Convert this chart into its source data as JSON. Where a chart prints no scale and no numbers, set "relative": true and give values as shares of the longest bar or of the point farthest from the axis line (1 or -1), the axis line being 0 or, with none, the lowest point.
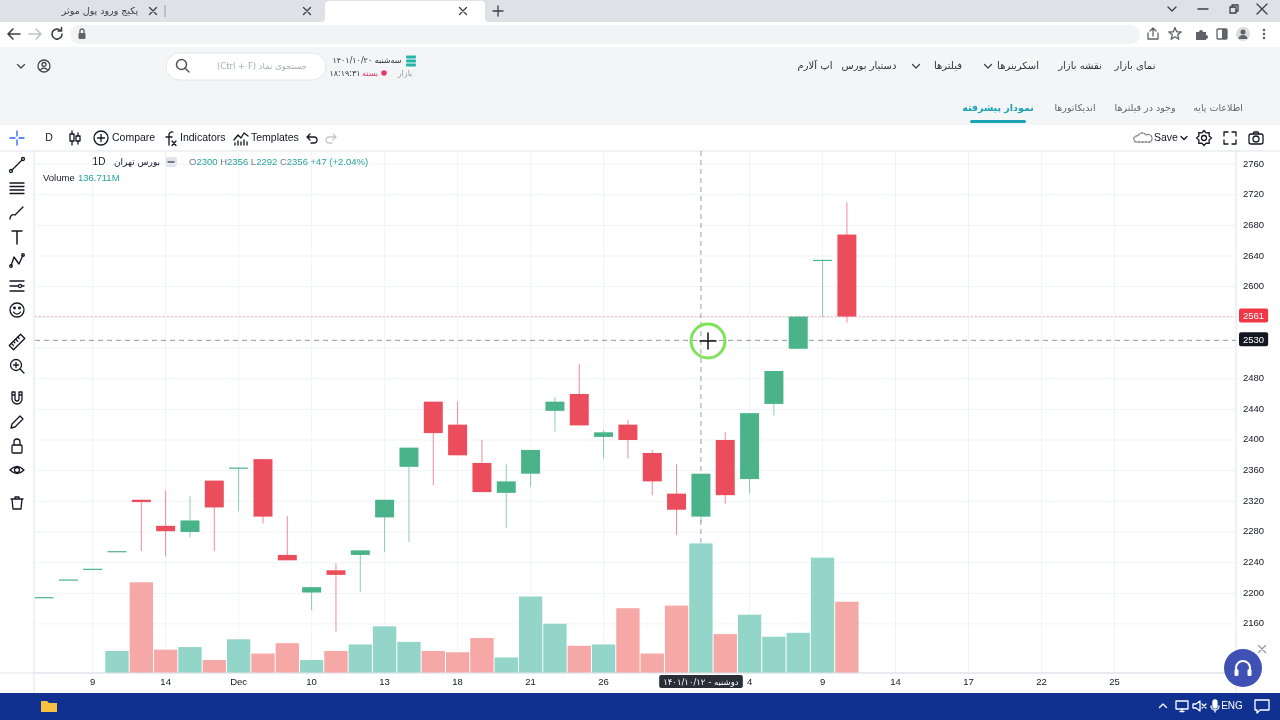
{
  "chart_data": [
    {
      "type": "candlestick",
      "categories": [
        null,
        null,
        "9",
        null,
        null,
        "14",
        null,
        null,
        "Dec",
        null,
        null,
        "10",
        null,
        null,
        "13",
        null,
        null,
        "18",
        null,
        null,
        "21",
        null,
        null,
        "26",
        null,
        null,
        null,
        "دوشنبه - ۱۴۰۱/۱۰/۱۲",
        null,
        "4",
        null,
        null,
        "9",
        null,
        null,
        "14",
        null,
        null,
        "17",
        null,
        null,
        "22",
        null,
        null,
        "25",
        null,
        null,
        null,
        null
      ],
      "ohlc": [
        [
          2195,
          2195,
          2195,
          2195
        ],
        [
          2218,
          2218,
          2218,
          2218
        ],
        [
          2232,
          2232,
          2232,
          2232
        ],
        [
          2255,
          2255,
          2255,
          2255
        ],
        [
          2322,
          2322,
          2255,
          2319
        ],
        [
          2288,
          2334,
          2248,
          2281
        ],
        [
          2280,
          2327,
          2273,
          2295
        ],
        [
          2347,
          2347,
          2255,
          2312
        ],
        [
          2364,
          2364,
          2307,
          2364
        ],
        [
          2375,
          2375,
          2291,
          2300
        ],
        [
          2250,
          2301,
          2243,
          2243
        ],
        [
          2201,
          2208,
          2178,
          2208
        ],
        [
          2230,
          2239,
          2150,
          2224
        ],
        [
          2250,
          2256,
          2202,
          2256
        ],
        [
          2299,
          2322,
          2254,
          2322
        ],
        [
          2365,
          2390,
          2267,
          2390
        ],
        [
          2450,
          2450,
          2341,
          2409
        ],
        [
          2420,
          2450,
          2380,
          2380
        ],
        [
          2370,
          2400,
          2332,
          2332
        ],
        [
          2331,
          2369,
          2285,
          2346
        ],
        [
          2356,
          2387,
          2339,
          2387
        ],
        [
          2438,
          2456,
          2411,
          2450
        ],
        [
          2460,
          2499,
          2419,
          2419
        ],
        [
          2404,
          2413,
          2376,
          2410
        ],
        [
          2420,
          2426,
          2376,
          2400
        ],
        [
          2383,
          2387,
          2328,
          2346
        ],
        [
          2330,
          2369,
          2276,
          2309
        ],
        [
          2300,
          2356,
          2292,
          2356
        ],
        [
          2400,
          2410,
          2317,
          2328
        ],
        [
          2349,
          2435,
          2330,
          2435
        ],
        [
          2447,
          2490,
          2432,
          2490
        ],
        [
          2519,
          2561,
          2519,
          2561
        ],
        [
          2635,
          2635,
          2560,
          2635
        ],
        [
          2668,
          2710,
          2553,
          2561
        ],
        null,
        null,
        null,
        null,
        null,
        null,
        null,
        null,
        null,
        null,
        null,
        null,
        null,
        null,
        null
      ],
      "colors": [
        "#4bb38a",
        "#4bb38a",
        "#4bb38a",
        "#4bb38a",
        "#eb4d5c",
        "#eb4d5c",
        "#4bb38a",
        "#eb4d5c",
        "#4bb38a",
        "#eb4d5c",
        "#eb4d5c",
        "#4bb38a",
        "#eb4d5c",
        "#4bb38a",
        "#4bb38a",
        "#4bb38a",
        "#eb4d5c",
        "#eb4d5c",
        "#eb4d5c",
        "#4bb38a",
        "#4bb38a",
        "#4bb38a",
        "#eb4d5c",
        "#4bb38a",
        "#eb4d5c",
        "#eb4d5c",
        "#eb4d5c",
        "#4bb38a",
        "#eb4d5c",
        "#4bb38a",
        "#4bb38a",
        "#4bb38a",
        "#4bb38a",
        "#eb4d5c",
        null,
        null,
        null,
        null,
        null,
        null,
        null,
        null,
        null,
        null,
        null,
        null,
        null,
        null,
        null
      ],
      "ylim": [
        2096,
        2777
      ],
      "yticks": [
        2160,
        2200,
        2240,
        2280,
        2320,
        2360,
        2400,
        2440,
        2480,
        {
          "value": 2520,
          "label": null
        },
        {
          "value": 2560,
          "label": null
        },
        2600,
        2640,
        2680,
        2720,
        2760
      ],
      "grid": true,
      "ref_lines": [
        {
          "axis": "y",
          "value": 2561,
          "label": "2561",
          "color": "#f23645",
          "line_style": "dotted"
        },
        {
          "axis": "y",
          "value": 2530,
          "label": "2530",
          "color": "#131722",
          "line_style": "dashed"
        },
        {
          "axis": "x",
          "value": "دوشنبه - ۱۴۰۱/۱۰/۱۲",
          "color": "#2a2e39",
          "line_style": "dashed"
        }
      ],
      "annotations": [
        "1D",
        "بورس تهران",
        "O2300 H2356 L2292 C2356 +47 (+2.04%)",
        "D",
        "Compare",
        "Indicators",
        "Templates",
        "Save",
        "نمای بازار",
        "نقشه بازار",
        "اسکرینرها",
        "فیلترها",
        "دستیار بورس",
        "اپ آلارم",
        "اطلاعات پایه",
        "وجود در فیلترها",
        "اندیکاتورها",
        "نمودار پیشرفته",
        "جستجوی نماد (Ctrl + F)",
        "سه‌شنبه ۱۴۰۱/۱۰/۲۰",
        "بازار",
        "بسته",
        "۱۸:۱۹:۳۱",
        "پکیج ورود پول موثر",
        "ENG"
      ]
    },
    {
      "type": "bar",
      "title": "Volume",
      "relative": true,
      "tick_labels": false,
      "categories": [
        null,
        null,
        null,
        null,
        null,
        null,
        null,
        null,
        null,
        null,
        null,
        null,
        null,
        null,
        null,
        null,
        null,
        null,
        null,
        null,
        null,
        null,
        null,
        null,
        null,
        null,
        null,
        null,
        null,
        null,
        null,
        null,
        null,
        null,
        null,
        null,
        null,
        null,
        null,
        null,
        null,
        null,
        null,
        null,
        null,
        null,
        null,
        null,
        null
      ],
      "values": [
        null,
        null,
        null,
        0.17,
        0.7,
        0.18,
        0.2,
        0.1,
        0.26,
        0.15,
        0.23,
        0.1,
        0.17,
        0.22,
        0.36,
        0.24,
        0.17,
        0.16,
        0.27,
        0.12,
        0.59,
        0.38,
        0.21,
        0.22,
        0.5,
        0.15,
        0.52,
        1,
        0.3,
        0.45,
        0.28,
        0.31,
        0.89,
        0.55,
        null,
        null,
        null,
        null,
        null,
        null,
        null,
        null,
        null,
        null,
        null,
        null,
        null,
        null,
        null
      ],
      "colors": [
        null,
        null,
        null,
        "#93d5c8",
        "#f5a8a6",
        "#f5a8a6",
        "#93d5c8",
        "#f5a8a6",
        "#93d5c8",
        "#f5a8a6",
        "#f5a8a6",
        "#93d5c8",
        "#f5a8a6",
        "#93d5c8",
        "#93d5c8",
        "#93d5c8",
        "#f5a8a6",
        "#f5a8a6",
        "#f5a8a6",
        "#93d5c8",
        "#93d5c8",
        "#93d5c8",
        "#f5a8a6",
        "#93d5c8",
        "#f5a8a6",
        "#f5a8a6",
        "#f5a8a6",
        "#93d5c8",
        "#f5a8a6",
        "#93d5c8",
        "#93d5c8",
        "#93d5c8",
        "#93d5c8",
        "#f5a8a6",
        null,
        null,
        null,
        null,
        null,
        null,
        null,
        null,
        null,
        null,
        null,
        null,
        null,
        null,
        null
      ],
      "annotations": [
        "136.711M"
      ]
    }
  ]
}
